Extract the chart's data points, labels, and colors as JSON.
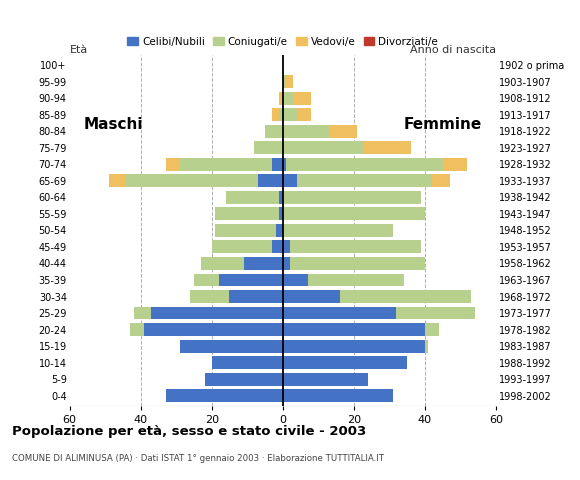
{
  "age_groups": [
    "0-4",
    "5-9",
    "10-14",
    "15-19",
    "20-24",
    "25-29",
    "30-34",
    "35-39",
    "40-44",
    "45-49",
    "50-54",
    "55-59",
    "60-64",
    "65-69",
    "70-74",
    "75-79",
    "80-84",
    "85-89",
    "90-94",
    "95-99",
    "100+"
  ],
  "birth_years": [
    "1998-2002",
    "1993-1997",
    "1988-1992",
    "1983-1987",
    "1978-1982",
    "1973-1977",
    "1968-1972",
    "1963-1967",
    "1958-1962",
    "1953-1957",
    "1948-1952",
    "1943-1947",
    "1938-1942",
    "1933-1937",
    "1928-1932",
    "1923-1927",
    "1918-1922",
    "1913-1917",
    "1908-1912",
    "1903-1907",
    "1902 o prima"
  ],
  "males": {
    "celibe": [
      33,
      22,
      20,
      29,
      39,
      37,
      15,
      18,
      11,
      3,
      2,
      1,
      1,
      7,
      3,
      0,
      0,
      0,
      0,
      0,
      0
    ],
    "coniugato": [
      0,
      0,
      0,
      0,
      4,
      5,
      11,
      7,
      12,
      17,
      17,
      18,
      15,
      37,
      26,
      8,
      5,
      1,
      0,
      0,
      0
    ],
    "vedovo": [
      0,
      0,
      0,
      0,
      0,
      0,
      0,
      0,
      0,
      0,
      0,
      0,
      0,
      5,
      4,
      0,
      0,
      2,
      1,
      0,
      0
    ],
    "divorziato": [
      0,
      0,
      0,
      0,
      0,
      0,
      0,
      0,
      0,
      0,
      0,
      0,
      0,
      0,
      0,
      0,
      0,
      0,
      0,
      0,
      0
    ]
  },
  "females": {
    "nubile": [
      31,
      24,
      35,
      40,
      40,
      32,
      16,
      7,
      2,
      2,
      0,
      0,
      0,
      4,
      1,
      0,
      0,
      0,
      0,
      0,
      0
    ],
    "coniugata": [
      0,
      0,
      0,
      1,
      4,
      22,
      37,
      27,
      38,
      37,
      31,
      40,
      39,
      38,
      44,
      23,
      13,
      4,
      3,
      1,
      0
    ],
    "vedova": [
      0,
      0,
      0,
      0,
      0,
      0,
      0,
      0,
      0,
      0,
      0,
      0,
      0,
      5,
      7,
      13,
      8,
      4,
      5,
      2,
      0
    ],
    "divorziata": [
      0,
      0,
      0,
      0,
      0,
      0,
      0,
      0,
      0,
      0,
      0,
      0,
      0,
      0,
      0,
      0,
      0,
      0,
      0,
      0,
      0
    ]
  },
  "colors": {
    "celibe_nubile": "#4472c4",
    "coniugato_a": "#b8d08d",
    "vedovo_a": "#f0c060",
    "divorziato_a": "#c0392b"
  },
  "xlim": 60,
  "title": "Popolazione per età, sesso e stato civile - 2003",
  "subtitle": "COMUNE DI ALIMINUSA (PA) · Dati ISTAT 1° gennaio 2003 · Elaborazione TUTTITALIA.IT",
  "ylabel_left": "Età",
  "ylabel_right": "Anno di nascita",
  "label_maschi": "Maschi",
  "label_femmine": "Femmine",
  "legend_labels": [
    "Celibi/Nubili",
    "Coniugati/e",
    "Vedovi/e",
    "Divorziati/e"
  ],
  "background_color": "#ffffff",
  "grid_color": "#b0b0b0"
}
